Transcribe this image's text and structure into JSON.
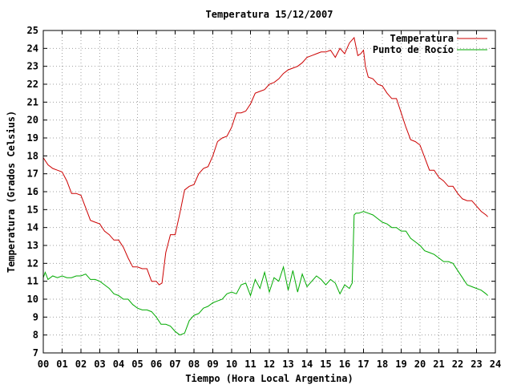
{
  "chart_data": {
    "type": "line",
    "title": "Temperatura 15/12/2007",
    "xlabel": "Tiempo (Hora Local Argentina)",
    "ylabel": "Temperatura (Grados Celsius)",
    "xlim": [
      0,
      24
    ],
    "ylim": [
      7,
      25
    ],
    "x_ticks": [
      "00",
      "01",
      "02",
      "03",
      "04",
      "05",
      "06",
      "07",
      "08",
      "09",
      "10",
      "11",
      "12",
      "13",
      "14",
      "15",
      "16",
      "17",
      "18",
      "19",
      "20",
      "21",
      "22",
      "23",
      "24"
    ],
    "y_ticks": [
      "7",
      "8",
      "9",
      "10",
      "11",
      "12",
      "13",
      "14",
      "15",
      "16",
      "17",
      "18",
      "19",
      "20",
      "21",
      "22",
      "23",
      "24",
      "25"
    ],
    "grid": true,
    "legend_position": "top-right",
    "series": [
      {
        "name": "Temperatura",
        "color": "#cc0000",
        "x": [
          0,
          0.25,
          0.5,
          0.75,
          1.0,
          1.25,
          1.5,
          1.75,
          2.0,
          2.25,
          2.5,
          2.75,
          3.0,
          3.25,
          3.5,
          3.75,
          4.0,
          4.25,
          4.5,
          4.75,
          5.0,
          5.25,
          5.5,
          5.75,
          6.0,
          6.15,
          6.3,
          6.5,
          6.75,
          7.0,
          7.25,
          7.5,
          7.75,
          8.0,
          8.25,
          8.5,
          8.75,
          9.0,
          9.25,
          9.5,
          9.75,
          10.0,
          10.25,
          10.5,
          10.75,
          11.0,
          11.25,
          11.5,
          11.75,
          12.0,
          12.25,
          12.5,
          12.75,
          13.0,
          13.25,
          13.5,
          13.75,
          14.0,
          14.25,
          14.5,
          14.75,
          15.0,
          15.25,
          15.5,
          15.75,
          16.0,
          16.25,
          16.5,
          16.7,
          16.85,
          17.0,
          17.1,
          17.25,
          17.5,
          17.75,
          18.0,
          18.25,
          18.5,
          18.75,
          19.0,
          19.25,
          19.5,
          19.75,
          20.0,
          20.25,
          20.5,
          20.75,
          21.0,
          21.25,
          21.5,
          21.75,
          22.0,
          22.25,
          22.5,
          22.75,
          23.0,
          23.25,
          23.5,
          23.6
        ],
        "y": [
          17.9,
          17.5,
          17.3,
          17.2,
          17.1,
          16.6,
          15.9,
          15.9,
          15.8,
          15.1,
          14.4,
          14.3,
          14.2,
          13.8,
          13.6,
          13.3,
          13.3,
          12.9,
          12.3,
          11.8,
          11.8,
          11.7,
          11.7,
          11.0,
          11.0,
          10.8,
          10.9,
          12.6,
          13.6,
          13.6,
          14.8,
          16.1,
          16.3,
          16.4,
          17.0,
          17.3,
          17.4,
          18.0,
          18.8,
          19.0,
          19.1,
          19.6,
          20.4,
          20.4,
          20.5,
          20.9,
          21.5,
          21.6,
          21.7,
          22.0,
          22.1,
          22.3,
          22.6,
          22.8,
          22.9,
          23.0,
          23.2,
          23.5,
          23.6,
          23.7,
          23.8,
          23.8,
          23.9,
          23.5,
          24.0,
          23.7,
          24.3,
          24.6,
          23.6,
          23.7,
          23.9,
          23.0,
          22.4,
          22.3,
          22.0,
          21.9,
          21.5,
          21.2,
          21.2,
          20.4,
          19.6,
          18.9,
          18.8,
          18.6,
          17.9,
          17.2,
          17.2,
          16.8,
          16.6,
          16.3,
          16.3,
          15.9,
          15.6,
          15.5,
          15.5,
          15.2,
          14.9,
          14.7,
          14.6
        ]
      },
      {
        "name": "Punto de Rocío",
        "color": "#00aa00",
        "x": [
          0,
          0.1,
          0.25,
          0.5,
          0.75,
          1.0,
          1.25,
          1.5,
          1.75,
          2.0,
          2.25,
          2.5,
          2.75,
          3.0,
          3.25,
          3.5,
          3.75,
          4.0,
          4.25,
          4.5,
          4.75,
          5.0,
          5.25,
          5.5,
          5.75,
          6.0,
          6.25,
          6.5,
          6.75,
          7.0,
          7.25,
          7.5,
          7.75,
          8.0,
          8.25,
          8.5,
          8.75,
          9.0,
          9.25,
          9.5,
          9.75,
          10.0,
          10.25,
          10.5,
          10.75,
          11.0,
          11.25,
          11.5,
          11.75,
          12.0,
          12.25,
          12.5,
          12.75,
          13.0,
          13.25,
          13.5,
          13.75,
          14.0,
          14.25,
          14.5,
          14.75,
          15.0,
          15.25,
          15.5,
          15.75,
          16.0,
          16.25,
          16.4,
          16.5,
          16.6,
          16.75,
          17.0,
          17.25,
          17.5,
          17.75,
          18.0,
          18.25,
          18.5,
          18.75,
          19.0,
          19.25,
          19.5,
          19.75,
          20.0,
          20.25,
          20.5,
          20.75,
          21.0,
          21.25,
          21.5,
          21.75,
          22.0,
          22.25,
          22.5,
          22.75,
          23.0,
          23.25,
          23.5,
          23.6
        ],
        "y": [
          11.2,
          11.5,
          11.1,
          11.3,
          11.2,
          11.3,
          11.2,
          11.2,
          11.3,
          11.3,
          11.4,
          11.1,
          11.1,
          11.0,
          10.8,
          10.6,
          10.3,
          10.2,
          10.0,
          10.0,
          9.7,
          9.5,
          9.4,
          9.4,
          9.3,
          9.0,
          8.6,
          8.6,
          8.5,
          8.2,
          8.0,
          8.1,
          8.8,
          9.1,
          9.2,
          9.5,
          9.6,
          9.8,
          9.9,
          10.0,
          10.3,
          10.4,
          10.3,
          10.8,
          10.9,
          10.2,
          11.1,
          10.6,
          11.5,
          10.4,
          11.2,
          11.0,
          11.8,
          10.5,
          11.6,
          10.4,
          11.4,
          10.7,
          11.0,
          11.3,
          11.1,
          10.8,
          11.1,
          10.9,
          10.3,
          10.8,
          10.6,
          10.9,
          14.7,
          14.8,
          14.8,
          14.9,
          14.8,
          14.7,
          14.5,
          14.3,
          14.2,
          14.0,
          14.0,
          13.8,
          13.8,
          13.4,
          13.2,
          13.0,
          12.7,
          12.6,
          12.5,
          12.3,
          12.1,
          12.1,
          12.0,
          11.6,
          11.2,
          10.8,
          10.7,
          10.6,
          10.5,
          10.3,
          10.2
        ]
      }
    ]
  }
}
